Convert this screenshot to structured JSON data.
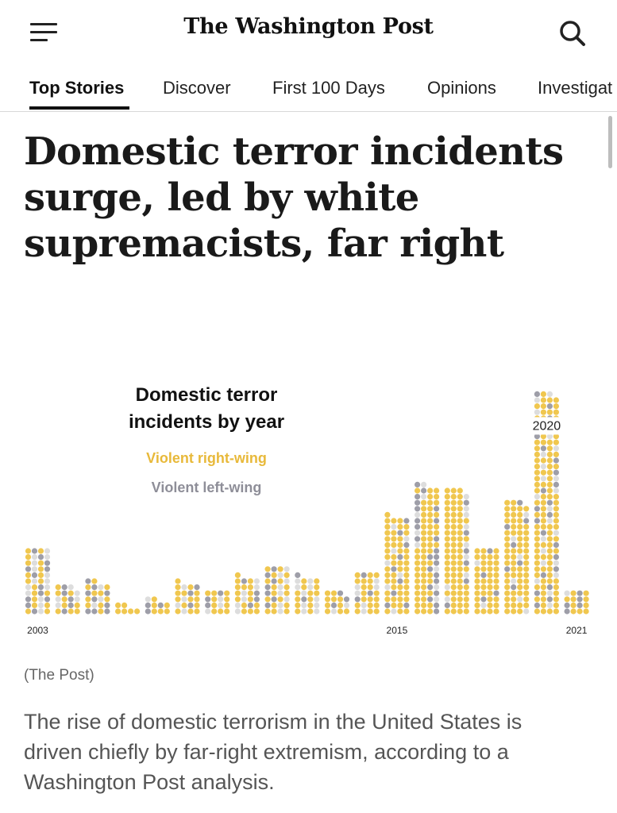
{
  "header": {
    "masthead": "The Washington Post",
    "menu_icon": "hamburger-menu-icon",
    "search_icon": "search-icon"
  },
  "nav": {
    "tabs": [
      {
        "label": "Top Stories",
        "active": true
      },
      {
        "label": "Discover",
        "active": false
      },
      {
        "label": "First 100 Days",
        "active": false
      },
      {
        "label": "Opinions",
        "active": false
      },
      {
        "label": "Investigat",
        "active": false
      }
    ]
  },
  "article": {
    "headline": "Domestic terror incidents surge, led by white supremacists, far right",
    "caption": "(The Post)",
    "summary": "The rise of domestic terrorism in the United States is driven chiefly by far-right extremism, according to a Washington Post analysis."
  },
  "chart_data": {
    "type": "bar",
    "title": "Domestic terror incidents by year",
    "legend": [
      {
        "name": "Violent right-wing",
        "color": "#f0c74f"
      },
      {
        "name": "Violent left-wing",
        "color": "#9e9ea8"
      }
    ],
    "other_color": "#dddddd",
    "categories": [
      "2003",
      "2004",
      "2005",
      "2006",
      "2007",
      "2008",
      "2009",
      "2010",
      "2011",
      "2012",
      "2013",
      "2014",
      "2015",
      "2016",
      "2017",
      "2018",
      "2019",
      "2020",
      "2021"
    ],
    "x_tick_labels": [
      "2003",
      "2015",
      "2021"
    ],
    "annotation": "2020",
    "series": [
      {
        "name": "Violent right-wing",
        "values": [
          18,
          9,
          10,
          6,
          6,
          14,
          10,
          15,
          17,
          13,
          10,
          19,
          49,
          55,
          68,
          38,
          62,
          100,
          10
        ]
      },
      {
        "name": "Violent left-wing",
        "values": [
          12,
          5,
          9,
          0,
          3,
          3,
          3,
          4,
          7,
          2,
          3,
          3,
          9,
          23,
          6,
          4,
          7,
          24,
          5
        ]
      },
      {
        "name": "",
        "values": [
          14,
          5,
          3,
          0,
          1,
          4,
          3,
          6,
          8,
          10,
          2,
          6,
          7,
          8,
          9,
          2,
          6,
          23,
          1
        ]
      }
    ]
  }
}
